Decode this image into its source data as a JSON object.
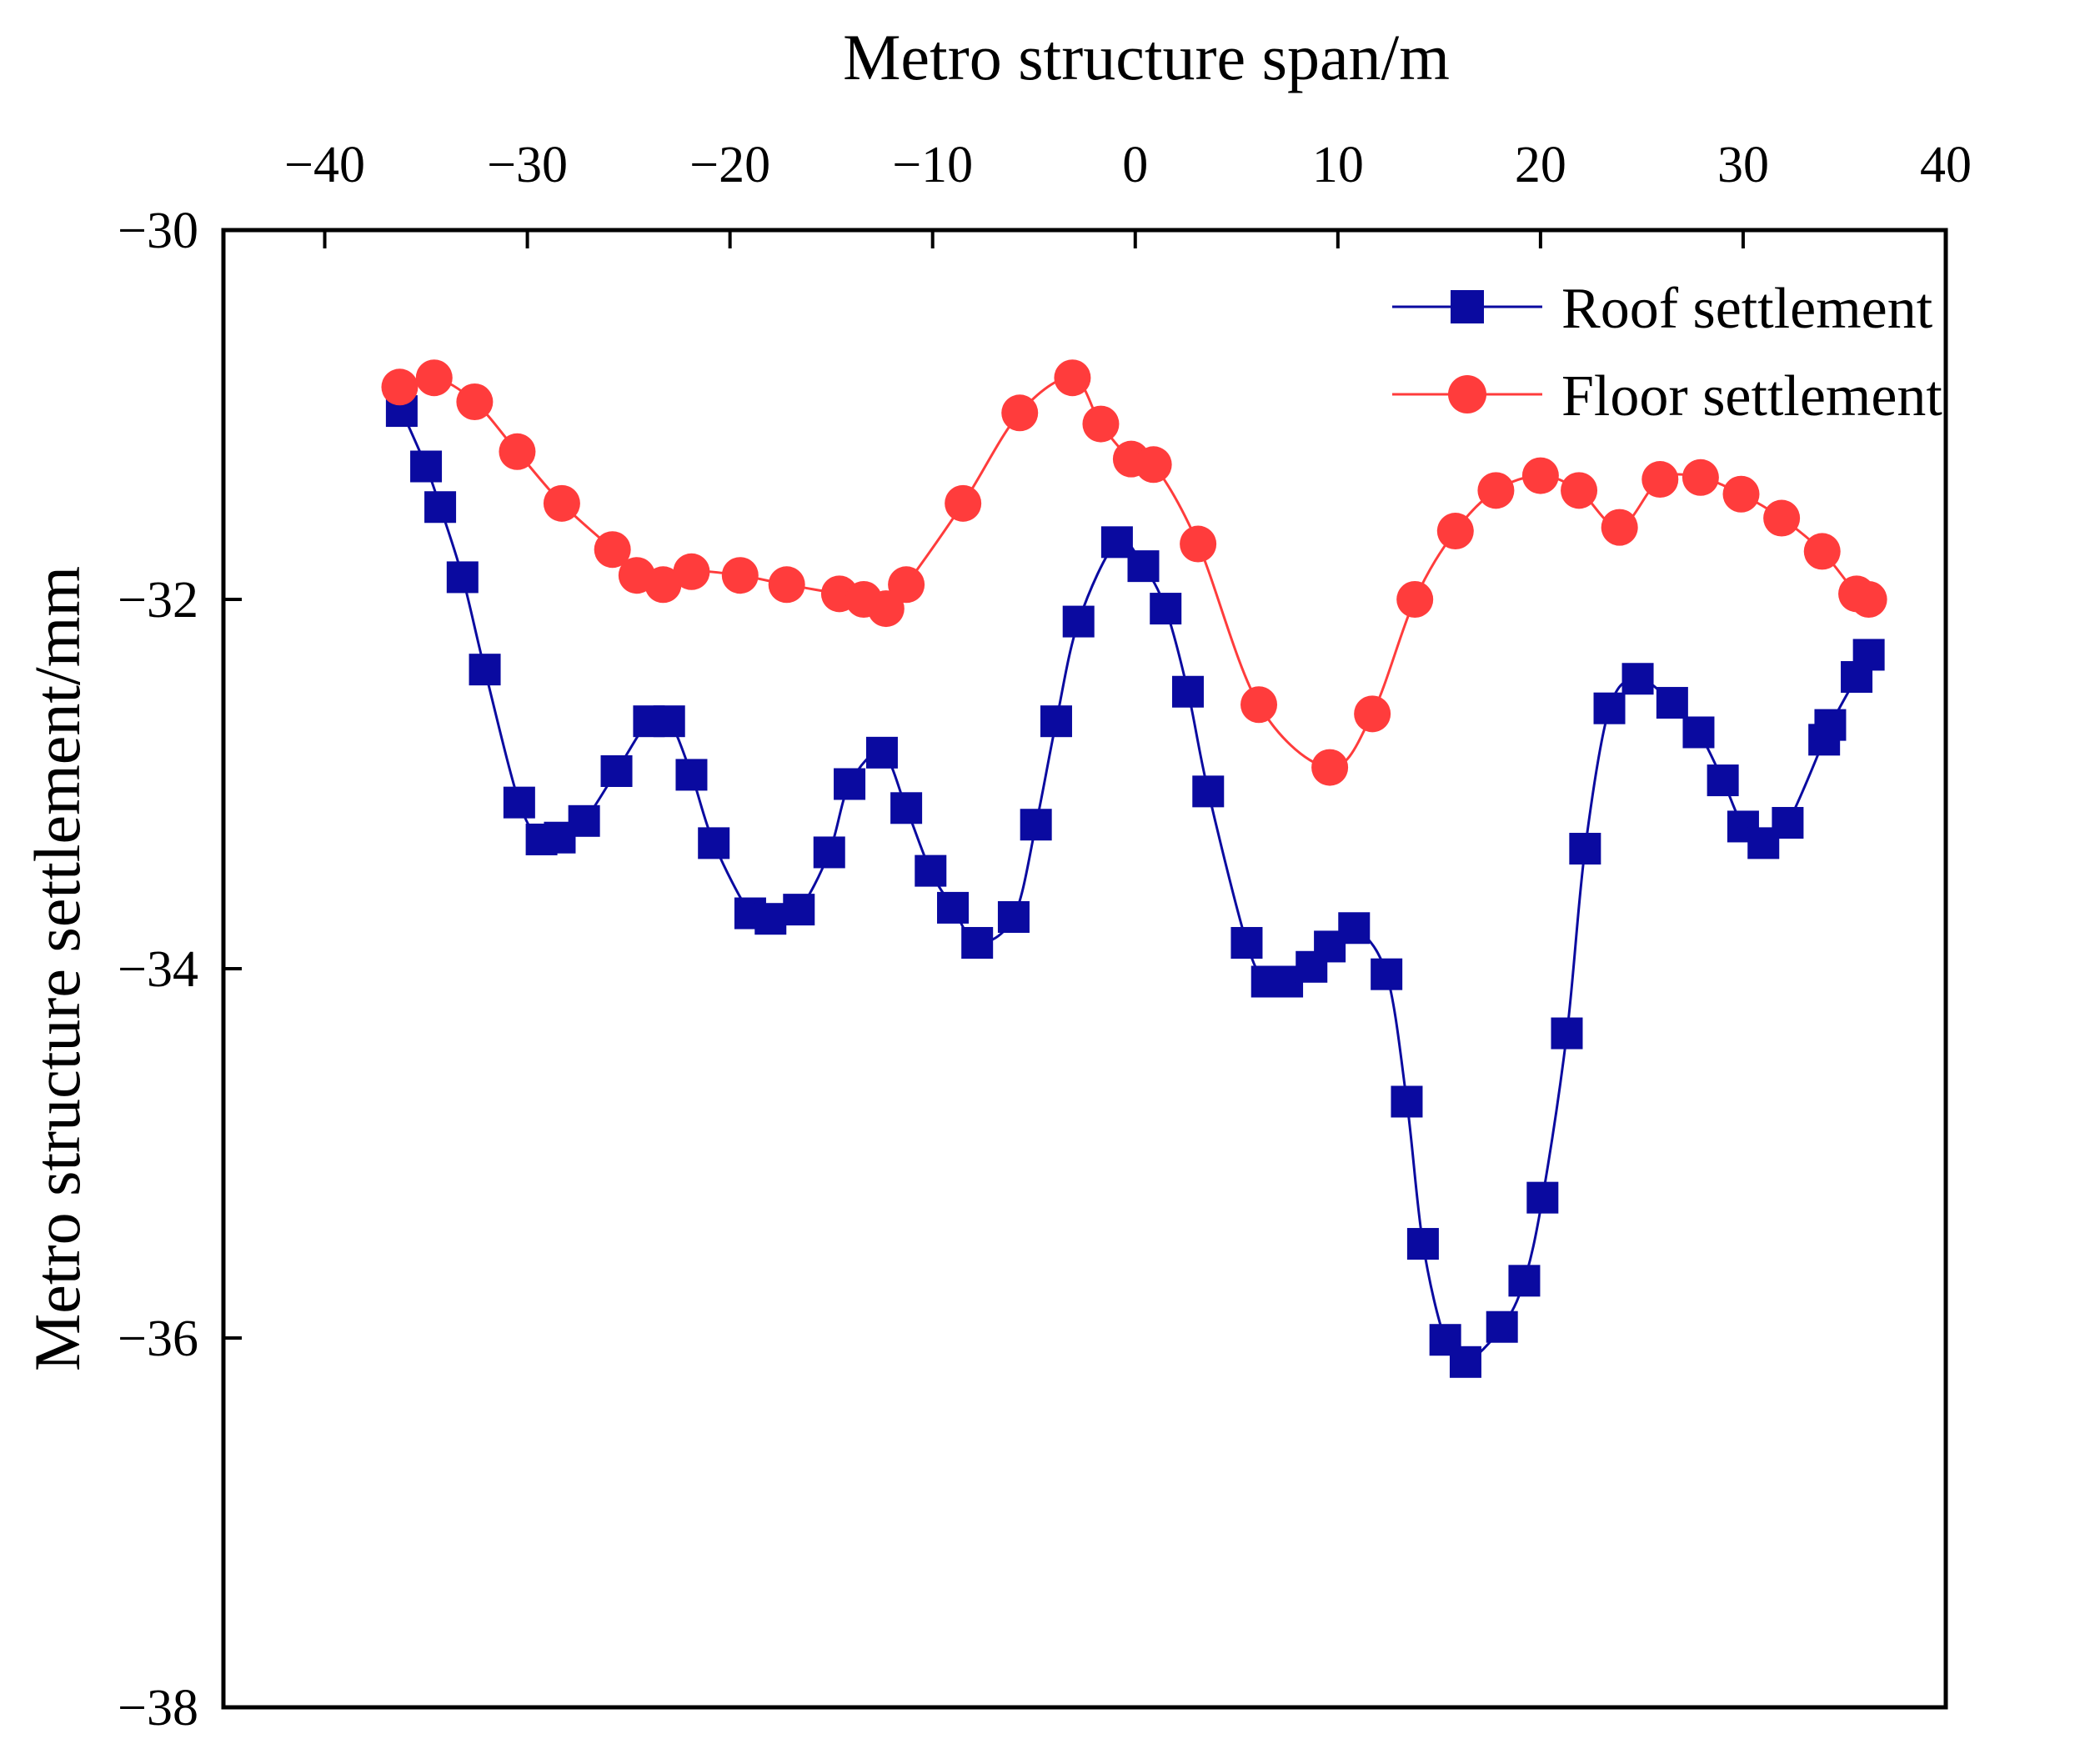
{
  "chart_data": {
    "type": "line",
    "title": "",
    "xlabel": "Metro structure span/m",
    "ylabel": "Metro structure settlement/mm",
    "xlim": [
      -45,
      40
    ],
    "ylim": [
      -38,
      -30
    ],
    "x_ticks": [
      -40,
      -30,
      -20,
      -10,
      0,
      10,
      20,
      30,
      40
    ],
    "x_tick_labels": [
      "−40",
      "−30",
      "−20",
      "−10",
      "0",
      "10",
      "20",
      "30",
      "40"
    ],
    "y_ticks": [
      -30,
      -32,
      -34,
      -36,
      -38
    ],
    "y_tick_labels": [
      "−30",
      "−32",
      "−34",
      "−36",
      "−38"
    ],
    "grid": false,
    "x_axis_position": "top",
    "legend_position": "top-right",
    "series": [
      {
        "name": "Roof settlement",
        "color": "#0a0aa0",
        "marker": "square",
        "points": [
          [
            -36.2,
            -30.98
          ],
          [
            -35.0,
            -31.28
          ],
          [
            -34.3,
            -31.5
          ],
          [
            -33.2,
            -31.88
          ],
          [
            -32.1,
            -32.38
          ],
          [
            -30.4,
            -33.1
          ],
          [
            -29.3,
            -33.3
          ],
          [
            -28.4,
            -33.29
          ],
          [
            -27.2,
            -33.2
          ],
          [
            -25.6,
            -32.93
          ],
          [
            -24.0,
            -32.66
          ],
          [
            -23.0,
            -32.66
          ],
          [
            -21.9,
            -32.95
          ],
          [
            -20.8,
            -33.32
          ],
          [
            -19.0,
            -33.7
          ],
          [
            -18.0,
            -33.73
          ],
          [
            -16.6,
            -33.68
          ],
          [
            -15.1,
            -33.37
          ],
          [
            -14.1,
            -33.0
          ],
          [
            -12.5,
            -32.83
          ],
          [
            -11.3,
            -33.13
          ],
          [
            -10.1,
            -33.47
          ],
          [
            -9.0,
            -33.67
          ],
          [
            -7.8,
            -33.86
          ],
          [
            -6.0,
            -33.72
          ],
          [
            -4.9,
            -33.22
          ],
          [
            -3.9,
            -32.66
          ],
          [
            -2.8,
            -32.12
          ],
          [
            -0.9,
            -31.69
          ],
          [
            0.4,
            -31.82
          ],
          [
            1.5,
            -32.05
          ],
          [
            2.6,
            -32.5
          ],
          [
            3.6,
            -33.04
          ],
          [
            5.5,
            -33.86
          ],
          [
            6.5,
            -34.07
          ],
          [
            7.5,
            -34.07
          ],
          [
            8.7,
            -33.99
          ],
          [
            9.6,
            -33.88
          ],
          [
            10.8,
            -33.78
          ],
          [
            12.4,
            -34.03
          ],
          [
            13.4,
            -34.72
          ],
          [
            14.2,
            -35.49
          ],
          [
            15.3,
            -36.01
          ],
          [
            16.3,
            -36.13
          ],
          [
            18.1,
            -35.94
          ],
          [
            19.2,
            -35.69
          ],
          [
            20.1,
            -35.24
          ],
          [
            21.3,
            -34.35
          ],
          [
            22.2,
            -33.35
          ],
          [
            23.4,
            -32.59
          ],
          [
            24.8,
            -32.43
          ],
          [
            26.5,
            -32.56
          ],
          [
            27.8,
            -32.72
          ],
          [
            29.0,
            -32.98
          ],
          [
            30.0,
            -33.23
          ],
          [
            31.0,
            -33.32
          ],
          [
            32.2,
            -33.21
          ],
          [
            34.0,
            -32.76
          ],
          [
            34.3,
            -32.68
          ],
          [
            35.6,
            -32.42
          ],
          [
            36.2,
            -32.3
          ]
        ]
      },
      {
        "name": "Floor settlement",
        "color": "#ff3c3c",
        "marker": "circle",
        "points": [
          [
            -36.3,
            -30.85
          ],
          [
            -34.6,
            -30.8
          ],
          [
            -32.6,
            -30.93
          ],
          [
            -30.5,
            -31.2
          ],
          [
            -28.3,
            -31.48
          ],
          [
            -25.8,
            -31.73
          ],
          [
            -24.6,
            -31.87
          ],
          [
            -23.3,
            -31.92
          ],
          [
            -21.9,
            -31.85
          ],
          [
            -19.5,
            -31.87
          ],
          [
            -17.2,
            -31.92
          ],
          [
            -14.6,
            -31.97
          ],
          [
            -13.4,
            -32.0
          ],
          [
            -12.3,
            -32.05
          ],
          [
            -11.3,
            -31.92
          ],
          [
            -8.5,
            -31.48
          ],
          [
            -5.7,
            -30.99
          ],
          [
            -3.1,
            -30.8
          ],
          [
            -1.7,
            -31.05
          ],
          [
            -0.2,
            -31.24
          ],
          [
            0.9,
            -31.27
          ],
          [
            3.1,
            -31.7
          ],
          [
            6.1,
            -32.57
          ],
          [
            9.6,
            -32.91
          ],
          [
            11.7,
            -32.62
          ],
          [
            13.8,
            -32.0
          ],
          [
            15.8,
            -31.63
          ],
          [
            17.8,
            -31.41
          ],
          [
            20.0,
            -31.33
          ],
          [
            21.9,
            -31.41
          ],
          [
            23.9,
            -31.61
          ],
          [
            25.9,
            -31.35
          ],
          [
            27.9,
            -31.34
          ],
          [
            29.9,
            -31.43
          ],
          [
            31.9,
            -31.56
          ],
          [
            33.9,
            -31.74
          ],
          [
            35.6,
            -31.97
          ],
          [
            36.2,
            -32.0
          ]
        ]
      }
    ]
  }
}
